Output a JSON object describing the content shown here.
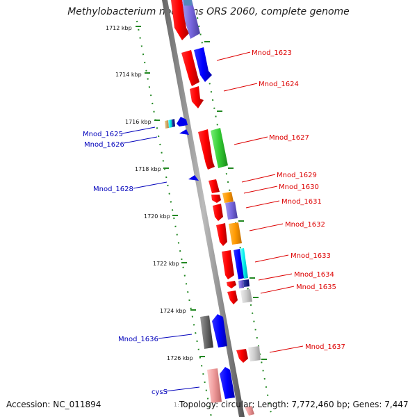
{
  "title": "Methylobacterium nodulans ORS 2060, complete genome",
  "footer": {
    "accession": "Accession: NC_011894",
    "topology": "Topology: circular; Length: 7,772,460 bp; Genes: 7,447",
    "stray_mark": "1:"
  },
  "colors": {
    "forward_label": "#dd0000",
    "reverse_label": "#0000bb",
    "backbone": "#888888",
    "tick": "#228822"
  },
  "tick_labels": [
    "1712 kbp",
    "1714 kbp",
    "1716 kbp",
    "1718 kbp",
    "1720 kbp",
    "1722 kbp",
    "1724 kbp",
    "1726 kbp"
  ],
  "forward_labels": [
    "Mnod_1623",
    "Mnod_1624",
    "Mnod_1627",
    "Mnod_1629",
    "Mnod_1630",
    "Mnod_1631",
    "Mnod_1632",
    "Mnod_1633",
    "Mnod_1634",
    "Mnod_1635",
    "Mnod_1637"
  ],
  "reverse_labels": [
    "Mnod_1625",
    "Mnod_1626",
    "Mnod_1628",
    "Mnod_1636",
    "cysS"
  ]
}
